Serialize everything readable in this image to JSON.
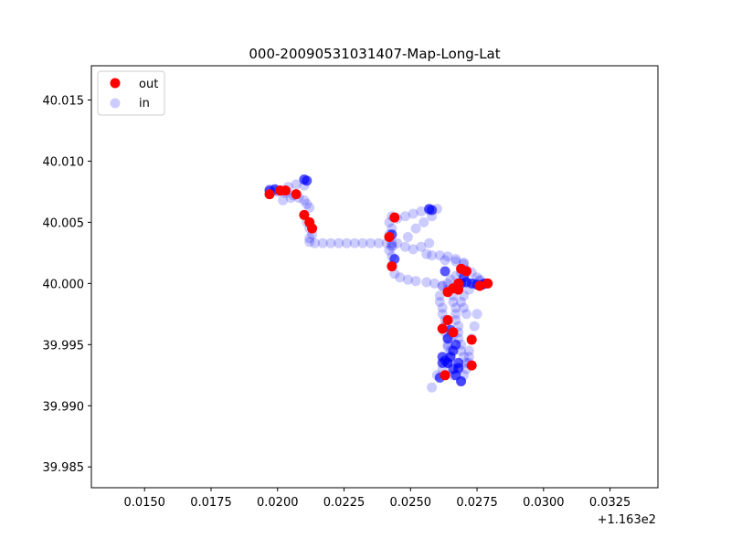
{
  "chart_data": {
    "type": "scatter",
    "title": "000-20090531031407-Map-Long-Lat",
    "xlabel": "",
    "ylabel": "",
    "x_offset_text": "+1.163e2",
    "x_offset": 116.3,
    "xlim": [
      0.013,
      0.0343
    ],
    "ylim": [
      39.9833,
      40.0178
    ],
    "xticks": [
      0.015,
      0.0175,
      0.02,
      0.0225,
      0.025,
      0.0275,
      0.03,
      0.0325
    ],
    "xtick_labels": [
      "0.0150",
      "0.0175",
      "0.0200",
      "0.0225",
      "0.0250",
      "0.0275",
      "0.0300",
      "0.0325"
    ],
    "yticks": [
      39.985,
      39.99,
      39.995,
      40.0,
      40.005,
      40.01,
      40.015
    ],
    "ytick_labels": [
      "39.985",
      "39.990",
      "39.995",
      "40.000",
      "40.005",
      "40.010",
      "40.015"
    ],
    "grid": false,
    "legend_position": "top-left",
    "series": [
      {
        "name": "in",
        "color": "#0000ff",
        "opacity": 0.2,
        "x": [
          0.0197,
          0.02,
          0.0203,
          0.0206,
          0.0208,
          0.021,
          0.0211,
          0.0212,
          0.021,
          0.0207,
          0.0204,
          0.0201,
          0.0211,
          0.0212,
          0.0213,
          0.0212,
          0.0212,
          0.0214,
          0.0217,
          0.022,
          0.0223,
          0.0226,
          0.0229,
          0.0232,
          0.0235,
          0.0238,
          0.0241,
          0.0243,
          0.0243,
          0.0242,
          0.0242,
          0.0243,
          0.0243,
          0.0243,
          0.0244,
          0.0246,
          0.0249,
          0.0252,
          0.0256,
          0.0259,
          0.0262,
          0.0264,
          0.0242,
          0.0243,
          0.0245,
          0.0248,
          0.0251,
          0.0254,
          0.0257,
          0.0256,
          0.0258,
          0.0261,
          0.0264,
          0.0267,
          0.027,
          0.0243,
          0.0245,
          0.0248,
          0.0251,
          0.0254,
          0.0257,
          0.026,
          0.0262,
          0.0264,
          0.0265,
          0.0267,
          0.0269,
          0.0271,
          0.0273,
          0.0275,
          0.0276,
          0.0278,
          0.0279,
          0.0261,
          0.0261,
          0.0262,
          0.0262,
          0.0263,
          0.0263,
          0.0263,
          0.0264,
          0.0264,
          0.0265,
          0.0265,
          0.0264,
          0.0262,
          0.026,
          0.0258,
          0.0266,
          0.0266,
          0.0267,
          0.0267,
          0.0267,
          0.0268,
          0.0268,
          0.0268,
          0.0269,
          0.0269,
          0.027,
          0.0271,
          0.0272,
          0.0272,
          0.0273,
          0.0274,
          0.0275,
          0.0268,
          0.0266,
          0.0264,
          0.0269,
          0.027,
          0.0271,
          0.0272,
          0.0271,
          0.027,
          0.0269,
          0.027,
          0.0272,
          0.0274,
          0.0276,
          0.0249,
          0.0252,
          0.0255,
          0.0258,
          0.0199,
          0.0205,
          0.0202,
          0.0263,
          0.0267,
          0.027,
          0.0266,
          0.0264
        ],
        "y": [
          40.0077,
          40.0075,
          40.0074,
          40.0072,
          40.007,
          40.0068,
          40.0065,
          40.0062,
          40.008,
          40.0081,
          40.0079,
          40.0076,
          40.005,
          40.0045,
          40.004,
          40.0037,
          40.0034,
          40.0033,
          40.0033,
          40.0033,
          40.0033,
          40.0033,
          40.0033,
          40.0033,
          40.0033,
          40.0033,
          40.0033,
          40.0033,
          40.0045,
          40.005,
          40.004,
          40.003,
          40.0022,
          40.0015,
          40.0008,
          40.0005,
          40.0003,
          40.0002,
          40.0001,
          40.0,
          39.9998,
          39.9995,
          40.0027,
          40.0031,
          40.0033,
          40.003,
          40.0028,
          40.003,
          40.0033,
          40.0024,
          40.0023,
          40.0023,
          40.0022,
          40.002,
          40.0017,
          40.0055,
          40.0053,
          40.0055,
          40.0057,
          40.0059,
          40.006,
          40.0061,
          39.9998,
          40.0,
          40.0003,
          40.0006,
          40.0009,
          40.0011,
          40.0009,
          40.0005,
          40.0002,
          40.0,
          40.0,
          39.999,
          39.9985,
          39.998,
          39.9975,
          39.997,
          39.9965,
          39.996,
          39.9955,
          39.995,
          39.9945,
          39.994,
          39.9935,
          39.993,
          39.9925,
          39.9915,
          39.999,
          39.9985,
          39.998,
          39.9975,
          39.997,
          39.9965,
          39.996,
          39.9955,
          39.995,
          39.9945,
          39.994,
          39.9935,
          39.9935,
          39.9945,
          39.9955,
          39.9965,
          39.9975,
          39.993,
          39.9925,
          39.9935,
          39.992,
          39.9925,
          39.993,
          39.994,
          39.9975,
          39.998,
          39.9985,
          39.999,
          39.9995,
          40.0,
          40.0003,
          40.0038,
          40.0045,
          40.005,
          40.0055,
          40.0076,
          40.007,
          40.0068,
          40.0019,
          40.0018,
          40.0016,
          39.9958,
          39.9948
        ]
      },
      {
        "name": "in",
        "color": "#0000ff",
        "opacity": 0.65,
        "x": [
          0.0197,
          0.0199,
          0.0201,
          0.021,
          0.0211,
          0.0269,
          0.0271,
          0.0273,
          0.0275,
          0.0277,
          0.0278,
          0.0262,
          0.0263,
          0.0264,
          0.0265,
          0.0266,
          0.0267,
          0.0268,
          0.0264,
          0.0265,
          0.0266,
          0.0261,
          0.0267,
          0.0269,
          0.0268,
          0.0262,
          0.0258,
          0.0257,
          0.0263,
          0.0243,
          0.0244,
          0.027
        ],
        "y": [
          40.0076,
          40.0077,
          40.0076,
          40.0085,
          40.0084,
          40.0,
          40.0001,
          40.0,
          39.9999,
          39.9999,
          40.0,
          39.994,
          39.9937,
          39.9935,
          39.994,
          39.9945,
          39.995,
          39.9935,
          39.9955,
          39.9962,
          39.993,
          39.9923,
          39.9925,
          39.992,
          39.9931,
          39.9935,
          40.006,
          40.0061,
          40.001,
          40.004,
          40.002,
          40.0005
        ]
      },
      {
        "name": "out",
        "color": "#ff0000",
        "opacity": 1.0,
        "x": [
          0.0197,
          0.0201,
          0.0207,
          0.0203,
          0.021,
          0.0212,
          0.0213,
          0.0244,
          0.0242,
          0.0243,
          0.0264,
          0.0266,
          0.0268,
          0.0269,
          0.0271,
          0.0276,
          0.0279,
          0.0262,
          0.0264,
          0.0266,
          0.0273,
          0.0273,
          0.0263,
          0.0268
        ],
        "y": [
          40.0073,
          40.0076,
          40.0073,
          40.0076,
          40.0056,
          40.005,
          40.0045,
          40.0054,
          40.0038,
          40.0014,
          39.9993,
          39.9996,
          40.0,
          40.0012,
          40.001,
          39.9998,
          40.0,
          39.9963,
          39.997,
          39.996,
          39.9954,
          39.9933,
          39.9925,
          39.9995
        ]
      }
    ],
    "legend": [
      {
        "label": "out",
        "color": "#ff0000",
        "opacity": 1.0
      },
      {
        "label": "in",
        "color": "#0000ff",
        "opacity": 0.2
      }
    ]
  }
}
